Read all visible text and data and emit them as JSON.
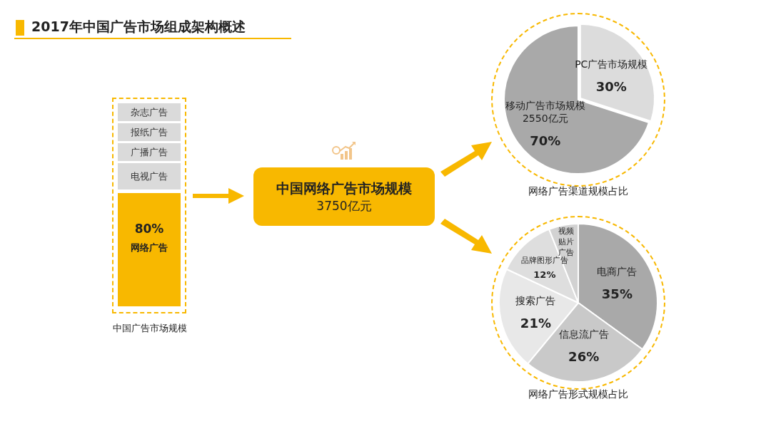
{
  "chart_data": [
    {
      "type": "other",
      "title": "2017年中国广告市场组成架构概述",
      "annotations": [
        "杂志广告",
        "报纸广告",
        "广播广告",
        "电视广告",
        "80%",
        "网络广告",
        "中国广告市场规模"
      ]
    },
    {
      "type": "other",
      "title": "中国网络广告市场规模",
      "annotations": [
        "3750亿元"
      ]
    },
    {
      "type": "pie",
      "title": "网络广告渠道规模占比",
      "categories": [
        "PC广告市场规模",
        "移动广告市场规模"
      ],
      "values": [
        30,
        70
      ],
      "colors": [
        "#dcdcdc",
        "#a9a9a9"
      ],
      "value_labels": [
        "30%",
        "70%"
      ],
      "annotations": [
        {
          "text": "2550亿元",
          "x": "移动广告市场规模"
        }
      ]
    },
    {
      "type": "pie",
      "title": "网络广告形式规模占比",
      "categories": [
        "电商广告",
        "信息流广告",
        "搜索广告",
        "品牌图形广告",
        "视频贴片广告"
      ],
      "values": [
        35,
        26,
        21,
        12,
        6
      ],
      "colors": [
        "#a9a9a9",
        "#c9c9c9",
        "#e8e8e8",
        "#dedede",
        "#d2d2d2"
      ],
      "value_labels": [
        "35%",
        "26%",
        "21%",
        "12%",
        null
      ]
    }
  ]
}
